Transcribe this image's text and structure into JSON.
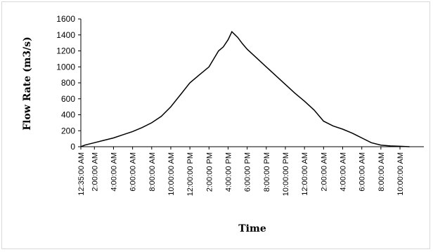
{
  "chart_data": {
    "type": "line",
    "xlabel": "Time",
    "ylabel": "Flow Rate (m3/s)",
    "ylim": [
      0,
      1600
    ],
    "yticks": [
      0,
      200,
      400,
      600,
      800,
      1000,
      1200,
      1400,
      1600
    ],
    "xtick_labels": [
      "12:35:00 AM",
      "2:00:00 AM",
      "4:00:00 AM",
      "6:00:00 AM",
      "8:00:00 AM",
      "10:00:00 AM",
      "12:00:00 PM",
      "2:00:00 PM",
      "4:00:00 PM",
      "6:00:00 PM",
      "8:00:00 PM",
      "10:00:00 PM",
      "12:00:00 AM",
      "2:00:00 AM",
      "4:00:00 AM",
      "6:00:00 AM",
      "8:00:00 AM",
      "10:00:00 AM"
    ],
    "grid": false,
    "legend": "none",
    "line_color": "#000000",
    "series": [
      {
        "x_hours": [
          0.58,
          1,
          2,
          3,
          4,
          5,
          6,
          7,
          8,
          9,
          10,
          11,
          12,
          13,
          14,
          15,
          15.5,
          16,
          16.4,
          17,
          17.5,
          18,
          19,
          20,
          21,
          22,
          23,
          24,
          25,
          26,
          27,
          28,
          29,
          30,
          31,
          32,
          33,
          34,
          35
        ],
        "values": [
          0,
          20,
          50,
          80,
          110,
          150,
          190,
          240,
          300,
          380,
          500,
          650,
          800,
          900,
          1000,
          1200,
          1250,
          1340,
          1440,
          1370,
          1290,
          1220,
          1110,
          1000,
          890,
          780,
          670,
          570,
          460,
          320,
          260,
          220,
          170,
          110,
          50,
          20,
          10,
          5,
          0
        ]
      }
    ]
  }
}
